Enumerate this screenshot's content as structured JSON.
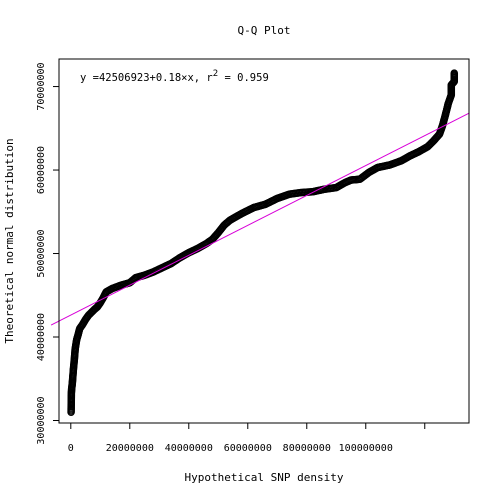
{
  "chart_data": {
    "type": "scatter",
    "title": "Q-Q Plot",
    "xlabel": "Hypothetical SNP density",
    "ylabel": "Theoretical normal distribution",
    "annotation": {
      "prefix": "y =42506923+0.18×x,  r",
      "exponent": "2",
      "suffix": " = 0.959"
    },
    "xlim": [
      -4000000,
      135000000
    ],
    "ylim": [
      29700000,
      73300000
    ],
    "x_ticks": [
      0,
      20000000,
      40000000,
      60000000,
      80000000,
      100000000,
      120000000
    ],
    "x_tick_labels": [
      "0",
      "20000000",
      "40000000",
      "60000000",
      "80000000",
      "100000000",
      ""
    ],
    "y_ticks": [
      30000000,
      40000000,
      50000000,
      60000000,
      70000000
    ],
    "y_tick_labels": [
      "30000000",
      "40000000",
      "50000000",
      "60000000",
      "70000000"
    ],
    "fit_line": {
      "intercept": 42506923,
      "slope": 0.18,
      "color": "#d800d8"
    },
    "grid": false,
    "point_style": "open-circle",
    "points": [
      [
        130000000,
        71600000
      ],
      [
        130000000,
        71300000
      ],
      [
        130000000,
        71000000
      ],
      [
        130000000,
        70600000
      ],
      [
        129000000,
        70200000
      ],
      [
        129000000,
        69600000
      ],
      [
        129000000,
        69000000
      ],
      [
        128000000,
        68000000
      ],
      [
        127000000,
        66600000
      ],
      [
        126000000,
        65300000
      ],
      [
        125000000,
        64300000
      ],
      [
        123000000,
        63500000
      ],
      [
        121000000,
        62800000
      ],
      [
        118000000,
        62200000
      ],
      [
        115000000,
        61700000
      ],
      [
        112000000,
        61100000
      ],
      [
        108000000,
        60600000
      ],
      [
        104000000,
        60300000
      ],
      [
        101000000,
        59700000
      ],
      [
        98000000,
        58900000
      ],
      [
        95000000,
        58800000
      ],
      [
        93000000,
        58500000
      ],
      [
        90000000,
        57900000
      ],
      [
        86000000,
        57700000
      ],
      [
        82000000,
        57400000
      ],
      [
        78000000,
        57300000
      ],
      [
        74000000,
        57100000
      ],
      [
        70000000,
        56600000
      ],
      [
        66000000,
        55900000
      ],
      [
        62000000,
        55500000
      ],
      [
        58000000,
        54800000
      ],
      [
        54000000,
        54000000
      ],
      [
        52000000,
        53400000
      ],
      [
        50000000,
        52500000
      ],
      [
        48000000,
        51700000
      ],
      [
        46000000,
        51200000
      ],
      [
        43000000,
        50600000
      ],
      [
        40000000,
        50100000
      ],
      [
        37000000,
        49500000
      ],
      [
        34000000,
        48800000
      ],
      [
        31000000,
        48300000
      ],
      [
        28000000,
        47800000
      ],
      [
        25000000,
        47400000
      ],
      [
        22000000,
        47100000
      ],
      [
        20000000,
        46500000
      ],
      [
        17000000,
        46200000
      ],
      [
        14000000,
        45800000
      ],
      [
        12000000,
        45400000
      ],
      [
        11000000,
        44700000
      ],
      [
        10000000,
        44100000
      ],
      [
        9000000,
        43600000
      ],
      [
        8000000,
        43300000
      ],
      [
        6000000,
        42600000
      ],
      [
        5000000,
        42100000
      ],
      [
        4000000,
        41500000
      ],
      [
        3000000,
        41000000
      ],
      [
        2500000,
        40300000
      ],
      [
        2000000,
        39700000
      ],
      [
        1500000,
        38600000
      ],
      [
        1200000,
        37300000
      ],
      [
        900000,
        36200000
      ],
      [
        700000,
        35300000
      ],
      [
        500000,
        34400000
      ],
      [
        300000,
        33800000
      ],
      [
        200000,
        33300000
      ],
      [
        100000,
        31000000
      ]
    ]
  }
}
